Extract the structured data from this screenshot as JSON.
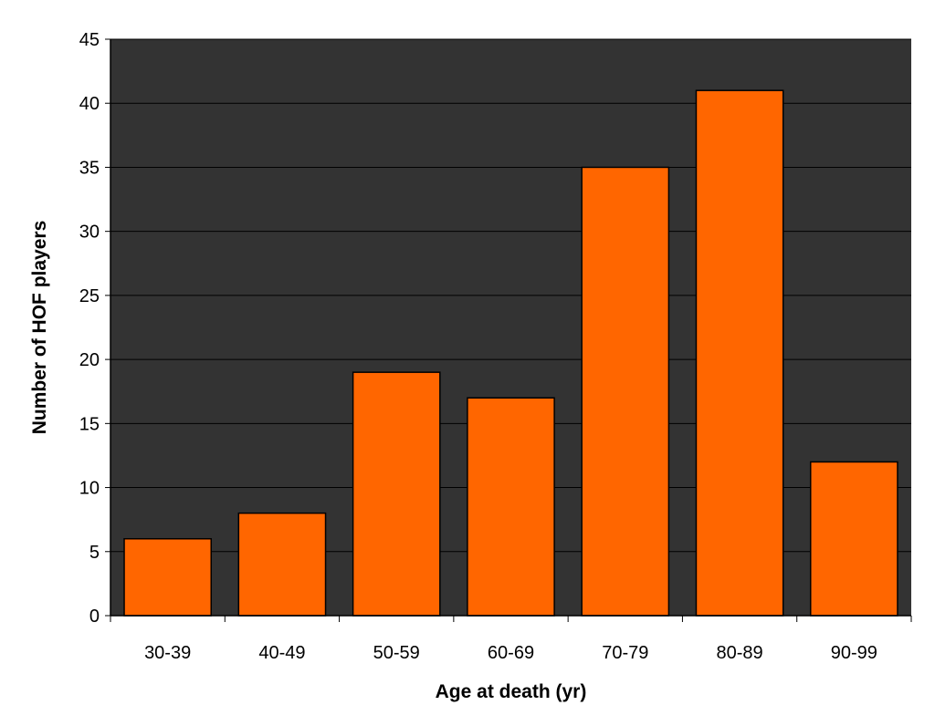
{
  "chart_data": {
    "type": "bar",
    "title": "",
    "xlabel": "Age at death (yr)",
    "ylabel": "Number of HOF players",
    "categories": [
      "30-39",
      "40-49",
      "50-59",
      "60-69",
      "70-79",
      "80-89",
      "90-99"
    ],
    "values": [
      6,
      8,
      19,
      17,
      35,
      41,
      12
    ],
    "ylim": [
      0,
      45
    ],
    "yticks": [
      "0",
      "5",
      "10",
      "15",
      "20",
      "25",
      "30",
      "35",
      "40",
      "45"
    ],
    "grid": true,
    "legend": "none",
    "colors": {
      "bar_fill": "#ff6600",
      "bar_stroke": "#000000",
      "plot_background": "#333333",
      "gridline": "#000000"
    }
  }
}
